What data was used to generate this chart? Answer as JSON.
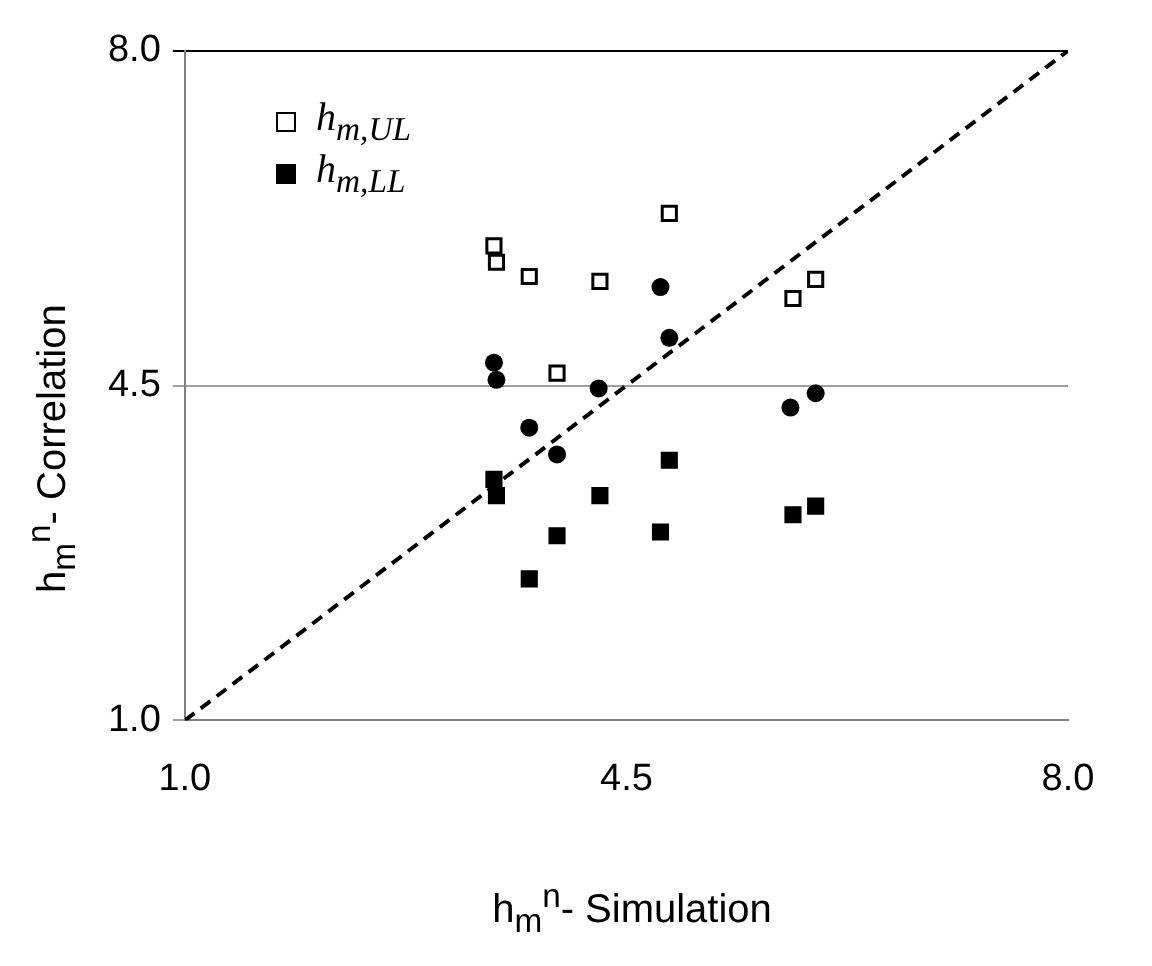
{
  "chart_data": {
    "type": "scatter",
    "xlabel": "h$_{m}$$^{n}$- Simulation",
    "ylabel": "h$_{m}$$^{n}$- Correlation",
    "xlim": [
      1.0,
      8.0
    ],
    "xticks": [
      {
        "value": 1,
        "label": "1.0"
      },
      {
        "value": 4.5,
        "label": "4.5"
      },
      {
        "value": 8,
        "label": "8.0"
      }
    ],
    "ylim": [
      1.0,
      8.0
    ],
    "yticks": [
      {
        "value": 1,
        "label": "1.0"
      },
      {
        "value": 4.5,
        "label": "4.5"
      },
      {
        "value": 8,
        "label": "8.0"
      }
    ],
    "grid": "y",
    "legend": "top left",
    "series": [
      {
        "name": "h$_{m,UL}$",
        "color": "#ffffff",
        "marker": "square",
        "x": [
          3.45,
          3.47,
          3.73,
          4.29,
          4.84,
          6.0,
          5.82,
          3.95
        ],
        "values": [
          5.96,
          5.79,
          5.64,
          5.59,
          6.3,
          5.61,
          5.41,
          4.63
        ]
      },
      {
        "name": "h$_{m,LL}$",
        "color": "#000000",
        "marker": "square",
        "x": [
          3.45,
          3.47,
          4.84,
          4.29,
          3.95,
          4.77,
          3.73,
          5.82,
          6.0
        ],
        "values": [
          3.52,
          3.35,
          3.72,
          3.35,
          2.93,
          2.97,
          2.48,
          3.15,
          3.24
        ]
      },
      {
        "color": "#000000",
        "marker": "circle",
        "x": [
          4.77,
          4.84,
          3.45,
          3.47,
          4.28,
          3.73,
          3.95,
          5.8,
          6.0
        ],
        "values": [
          5.53,
          5.0,
          4.74,
          4.56,
          4.47,
          4.06,
          3.78,
          4.27,
          4.42
        ]
      },
      {
        "type": "line",
        "color": "#000000",
        "marker": "none",
        "line_style": "dashed",
        "x": [
          1,
          8
        ],
        "values": [
          1,
          8
        ]
      }
    ]
  }
}
